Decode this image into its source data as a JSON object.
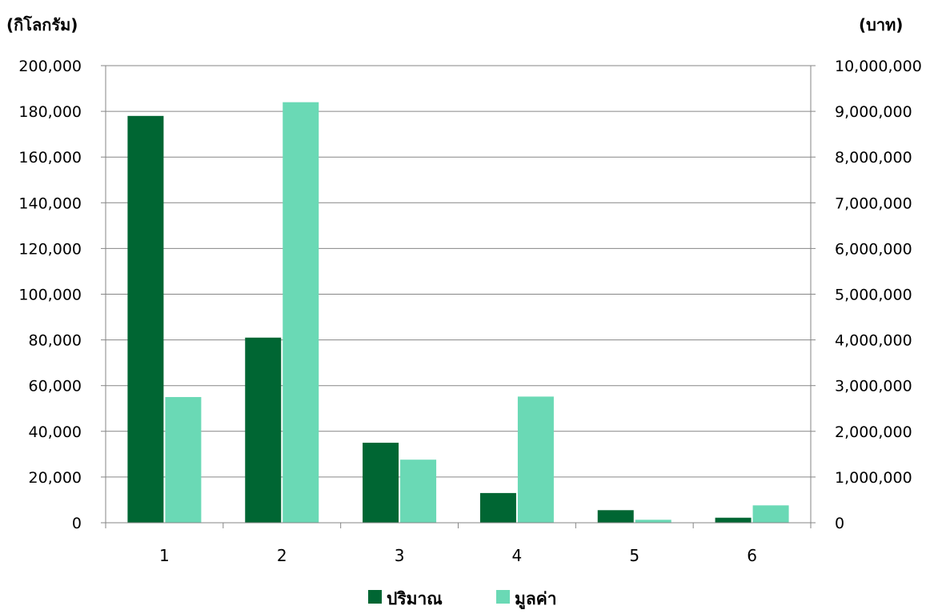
{
  "chart_data": {
    "type": "bar",
    "categories": [
      "1",
      "2",
      "3",
      "4",
      "5",
      "6"
    ],
    "series": [
      {
        "name": "ปริมาณ",
        "axis": "left",
        "color": "#006633",
        "values": [
          178000,
          81000,
          35000,
          13000,
          5500,
          2200
        ]
      },
      {
        "name": "มูลค่า",
        "axis": "right",
        "color": "#6ad9b5",
        "values": [
          2750000,
          9200000,
          1380000,
          2760000,
          65000,
          380000
        ]
      }
    ],
    "ylabel_left": "(กิโลกรัม)",
    "ylabel_right": "(บาท)",
    "ylim_left": [
      0,
      200000
    ],
    "ylim_right": [
      0,
      10000000
    ],
    "yticks_left": [
      "0",
      "20,000",
      "40,000",
      "60,000",
      "80,000",
      "100,000",
      "120,000",
      "140,000",
      "160,000",
      "180,000",
      "200,000"
    ],
    "yticks_right": [
      "0",
      "1,000,000",
      "2,000,000",
      "3,000,000",
      "4,000,000",
      "5,000,000",
      "6,000,000",
      "7,000,000",
      "8,000,000",
      "9,000,000",
      "10,000,000"
    ],
    "grid": true,
    "legend_position": "bottom"
  }
}
